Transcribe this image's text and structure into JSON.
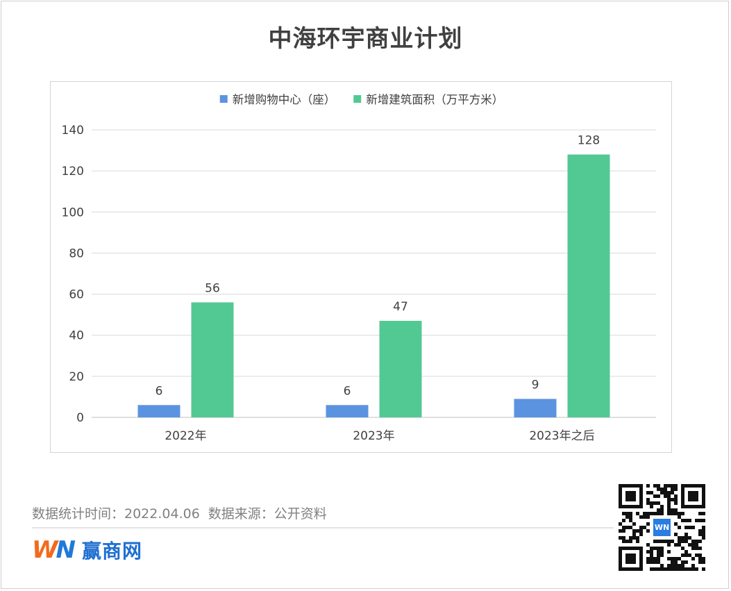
{
  "page": {
    "title": "中海环宇商业计划",
    "footer_stats_time": "数据统计时间：2022.04.06",
    "footer_source": "数据来源：公开资料",
    "brand_logo_w": "W",
    "brand_logo_n": "N",
    "brand_name": "赢商网",
    "qr_badge_text": "WN"
  },
  "colors": {
    "series1": "#5b93e0",
    "series2": "#52c993",
    "grid": "#d9d9d9",
    "text": "#404040"
  },
  "chart_data": {
    "type": "bar",
    "title": "",
    "xlabel": "",
    "ylabel": "",
    "categories": [
      "2022年",
      "2023年",
      "2023年之后"
    ],
    "series": [
      {
        "name": "新增购物中心（座）",
        "values": [
          6,
          6,
          9
        ]
      },
      {
        "name": "新增建筑面积（万平方米）",
        "values": [
          56,
          47,
          128
        ]
      }
    ],
    "ylim": [
      0,
      140
    ],
    "yticks": [
      0,
      20,
      40,
      60,
      80,
      100,
      120,
      140
    ],
    "grid": true,
    "legend_position": "top-center",
    "data_labels": true
  }
}
